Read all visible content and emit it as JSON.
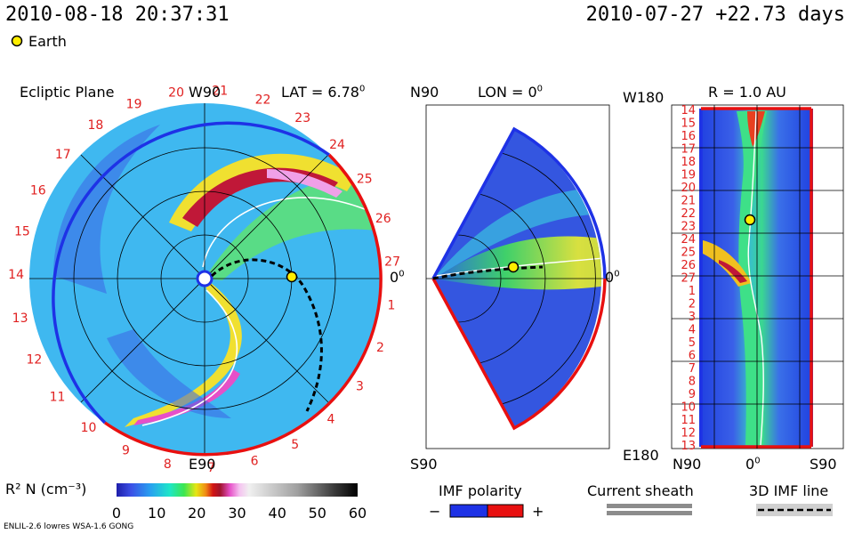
{
  "header": {
    "datetime": "2010-08-18 20:37:31",
    "reference": "2010-07-27 +22.73 days",
    "legend_earth": "Earth"
  },
  "panels": {
    "ecliptic": {
      "title": "Ecliptic Plane",
      "top_label": "W90",
      "bottom_label": "E90",
      "right_label": "0",
      "lat_label": "LAT = 6.78",
      "degree_mark": "0",
      "rim_numbers": [
        "1",
        "2",
        "3",
        "4",
        "5",
        "6",
        "7",
        "8",
        "9",
        "10",
        "11",
        "12",
        "13",
        "14",
        "15",
        "16",
        "17",
        "18",
        "19",
        "20",
        "21",
        "22",
        "23",
        "24",
        "25",
        "26",
        "27"
      ]
    },
    "meridional": {
      "top_label": "N90",
      "bottom_label": "S90",
      "right_label": "0",
      "lon_label": "LON = 0",
      "degree_mark": "0"
    },
    "radial": {
      "r_label": "R = 1.0 AU",
      "top_label": "W180",
      "bottom_label": "E180",
      "x_left": "N90",
      "x_mid": "0",
      "x_right": "S90",
      "degree_mark": "0",
      "y_numbers": [
        "14",
        "15",
        "16",
        "17",
        "18",
        "19",
        "20",
        "21",
        "22",
        "23",
        "24",
        "25",
        "26",
        "27",
        "1",
        "2",
        "3",
        "4",
        "5",
        "6",
        "7",
        "8",
        "9",
        "10",
        "11",
        "12",
        "13"
      ]
    }
  },
  "colorbar": {
    "label": "R² N (cm⁻³)",
    "ticks": [
      "0",
      "10",
      "20",
      "30",
      "40",
      "50",
      "60"
    ],
    "range": [
      0,
      60
    ]
  },
  "legend": {
    "imf_polarity": "IMF polarity",
    "minus": "−",
    "plus": "+",
    "current_sheath": "Current sheath",
    "imf_line": "3D IMF line"
  },
  "footer": {
    "model": "ENLIL-2.6 lowres WSA-1.6 GONG"
  },
  "colors": {
    "positive_polarity": "#e81010",
    "negative_polarity": "#1e32e6",
    "rim_numbers": "#e02020",
    "earth": "#ffee00"
  },
  "chart_data": {
    "type": "heatmap",
    "title": "Ecliptic Plane",
    "quantity": "R² N (cm⁻³)",
    "value_range": [
      0,
      60
    ],
    "earth": {
      "lat_deg": 6.78,
      "lon_deg": 0,
      "r_au": 1.0
    }
  }
}
